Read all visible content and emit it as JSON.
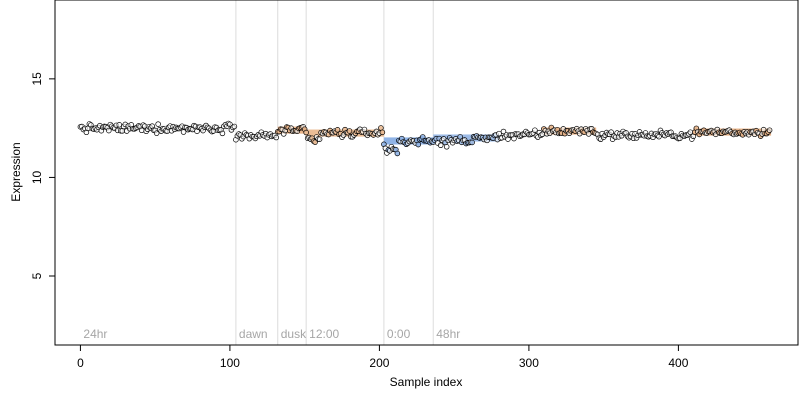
{
  "chart_data": {
    "type": "scatter",
    "title": "",
    "xlabel": "Sample index",
    "ylabel": "Expression",
    "xlim": [
      -17,
      480
    ],
    "ylim": [
      1.5,
      19
    ],
    "x_ticks": [
      0,
      100,
      200,
      300,
      400
    ],
    "y_ticks": [
      5,
      10,
      15
    ],
    "x_tick_labels": [
      "0",
      "100",
      "200",
      "300",
      "400"
    ],
    "y_tick_labels": [
      "5",
      "10",
      "15"
    ],
    "grid": false,
    "legend": "none",
    "n_points": 462,
    "annotations": [
      {
        "label": "24hr",
        "x": 0
      },
      {
        "label": "dawn",
        "x": 104
      },
      {
        "label": "dusk",
        "x": 132
      },
      {
        "label": "12:00",
        "x": 151
      },
      {
        "label": "0:00",
        "x": 203
      },
      {
        "label": "48hr",
        "x": 236
      }
    ],
    "segments": [
      {
        "x": [
          0,
          104
        ],
        "level": 12.5,
        "color": "#f5f5f5"
      },
      {
        "x": [
          104,
          132
        ],
        "level": 12.1,
        "color": "#ffffff"
      },
      {
        "x": [
          132,
          151
        ],
        "level": 12.4,
        "color": "#e9b58b"
      },
      {
        "x": [
          151,
          203
        ],
        "level": 12.25,
        "color": "#ebbd95"
      },
      {
        "x": [
          203,
          236
        ],
        "level": 11.85,
        "color": "#8fb3e6"
      },
      {
        "x": [
          236,
          280
        ],
        "level": 12.0,
        "color": "#9dbbe6"
      },
      {
        "x": [
          280,
          310
        ],
        "level": 12.15,
        "color": "#ffffff"
      },
      {
        "x": [
          310,
          345
        ],
        "level": 12.35,
        "color": "#e7b48a"
      },
      {
        "x": [
          345,
          410
        ],
        "level": 12.15,
        "color": "#ffffff"
      },
      {
        "x": [
          410,
          462
        ],
        "level": 12.3,
        "color": "#e7b48a"
      }
    ],
    "point_style": {
      "stroke": "#000000",
      "size": 2.4
    }
  }
}
